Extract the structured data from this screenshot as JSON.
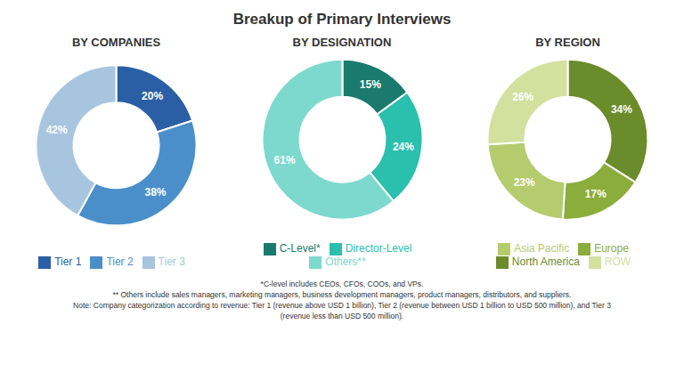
{
  "title": "Breakup of Primary Interviews",
  "chart_data": [
    {
      "type": "pie",
      "title": "BY COMPANIES",
      "categories": [
        "Tier 1",
        "Tier 2",
        "Tier 3"
      ],
      "values": [
        20,
        38,
        42
      ],
      "value_labels": [
        "20%",
        "38%",
        "42%"
      ],
      "colors": [
        "#2b5fa5",
        "#4a8fc9",
        "#a8c5e0"
      ],
      "data_labels": true,
      "legend": "bottom"
    },
    {
      "type": "pie",
      "title": "BY DESIGNATION",
      "categories": [
        "C-Level*",
        "Director-Level",
        "Others**"
      ],
      "values": [
        15,
        24,
        61
      ],
      "value_labels": [
        "15%",
        "24%",
        "61%"
      ],
      "colors": [
        "#1a7a6e",
        "#2bbfad",
        "#7dd9ce"
      ],
      "data_labels": true,
      "legend": "bottom"
    },
    {
      "type": "pie",
      "title": "BY REGION",
      "categories": [
        "North America",
        "Europe",
        "Asia Pacific",
        "ROW"
      ],
      "values": [
        34,
        17,
        23,
        26
      ],
      "value_labels": [
        "34%",
        "17%",
        "23%",
        "26%"
      ],
      "colors": [
        "#6b8c2a",
        "#8aad3b",
        "#b5cc6e",
        "#d4e09e"
      ],
      "data_labels": true,
      "legend": "bottom"
    }
  ],
  "annotations": [
    "*C-level includes CEOs, CFOs, COOs, and VPs.",
    "** Others include sales managers, marketing managers, business development managers, product managers, distributors, and suppliers.",
    "Note: Company categorization according to revenue: Tier 1 (revenue above USD 1 billion), Tier 2 (revenue between USD 1 billion to USD 500 million),  and Tier 3",
    "(revenue less than USD 500 million)."
  ]
}
